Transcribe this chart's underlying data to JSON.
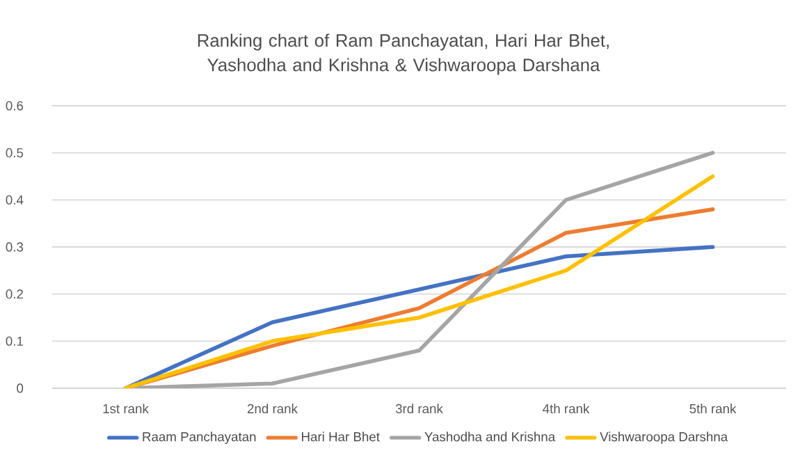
{
  "chart_data": {
    "type": "line",
    "title": "Ranking chart of Ram Panchayatan, Hari Har Bhet, Yashodha and Krishna & Vishwaroopa Darshana",
    "categories": [
      "1st rank",
      "2nd rank",
      "3rd rank",
      "4th rank",
      "5th rank"
    ],
    "series": [
      {
        "name": "Raam Panchayatan",
        "color": "#4472c4",
        "values": [
          0,
          0.14,
          0.21,
          0.28,
          0.3
        ]
      },
      {
        "name": "Hari Har Bhet",
        "color": "#ed7d31",
        "values": [
          0,
          0.09,
          0.17,
          0.33,
          0.38
        ]
      },
      {
        "name": "Yashodha and Krishna",
        "color": "#a5a5a5",
        "values": [
          0,
          0.01,
          0.08,
          0.4,
          0.5
        ]
      },
      {
        "name": "Vishwaroopa Darshna",
        "color": "#ffc000",
        "values": [
          0,
          0.1,
          0.15,
          0.25,
          0.45
        ]
      }
    ],
    "ylim": [
      0,
      0.6
    ],
    "yticks": [
      0,
      0.1,
      0.2,
      0.3,
      0.4,
      0.5,
      0.6
    ],
    "grid": "y",
    "legend": "bottom",
    "marker": "none",
    "line_style": "solid"
  }
}
